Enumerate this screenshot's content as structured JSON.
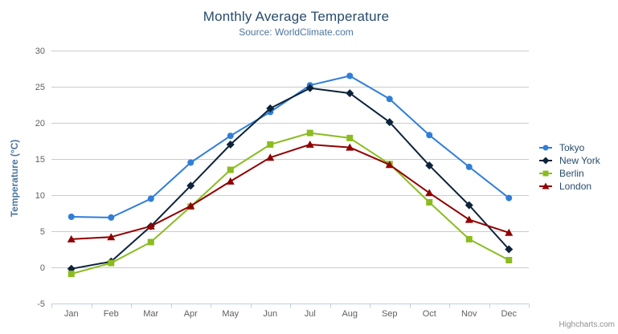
{
  "chart": {
    "title": "Monthly Average Temperature",
    "subtitle": "Source: WorldClimate.com",
    "credits": "Highcharts.com",
    "export_icon": "hamburger-menu-icon"
  },
  "colors": {
    "background": "#ffffff",
    "title": "#274b6d",
    "subtitle": "#4d759e",
    "axis_title": "#4d759e",
    "axis_labels": "#606060",
    "gridline": "#cccccc",
    "axis_line": "#c0d0e0",
    "legend_text": "#274b6d",
    "credits": "#909090",
    "export_icon": "#666666"
  },
  "chart_data": {
    "type": "line",
    "title": "Monthly Average Temperature",
    "subtitle": "Source: WorldClimate.com",
    "xlabel": "",
    "ylabel": "Temperature (°C)",
    "ylim": [
      -5,
      30
    ],
    "ytick_step": 5,
    "yticks": [
      -5,
      0,
      5,
      10,
      15,
      20,
      25,
      30
    ],
    "grid": true,
    "legend_position": "right",
    "categories": [
      "Jan",
      "Feb",
      "Mar",
      "Apr",
      "May",
      "Jun",
      "Jul",
      "Aug",
      "Sep",
      "Oct",
      "Nov",
      "Dec"
    ],
    "series": [
      {
        "name": "Tokyo",
        "color": "#2f7ed8",
        "marker": "circle",
        "values": [
          7.0,
          6.9,
          9.5,
          14.5,
          18.2,
          21.5,
          25.2,
          26.5,
          23.3,
          18.3,
          13.9,
          9.6
        ]
      },
      {
        "name": "New York",
        "color": "#0d233a",
        "marker": "diamond",
        "values": [
          -0.2,
          0.8,
          5.7,
          11.3,
          17.0,
          22.0,
          24.8,
          24.1,
          20.1,
          14.1,
          8.6,
          2.5
        ]
      },
      {
        "name": "Berlin",
        "color": "#8bbc21",
        "marker": "square",
        "values": [
          -0.9,
          0.6,
          3.5,
          8.4,
          13.5,
          17.0,
          18.6,
          17.9,
          14.3,
          9.0,
          3.9,
          1.0
        ]
      },
      {
        "name": "London",
        "color": "#910000",
        "marker": "triangle",
        "values": [
          3.9,
          4.2,
          5.7,
          8.5,
          11.9,
          15.2,
          17.0,
          16.6,
          14.2,
          10.3,
          6.6,
          4.8
        ]
      }
    ]
  }
}
